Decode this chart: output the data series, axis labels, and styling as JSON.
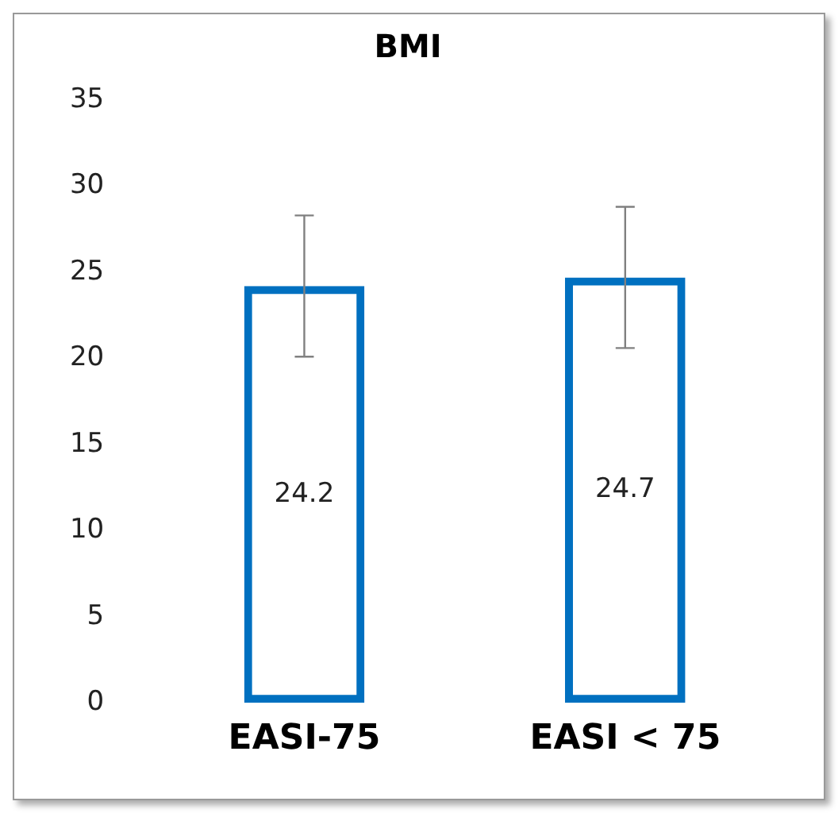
{
  "chart_data": {
    "type": "bar",
    "title": "BMI",
    "categories": [
      "EASI-75",
      "EASI < 75"
    ],
    "values": [
      24.2,
      24.7
    ],
    "errors": [
      4.1,
      4.1
    ],
    "color": "#0070c0",
    "ylim": [
      0,
      35
    ],
    "yticks": [
      0,
      5,
      10,
      15,
      20,
      25,
      30,
      35
    ],
    "grid": false,
    "data_labels": true
  }
}
